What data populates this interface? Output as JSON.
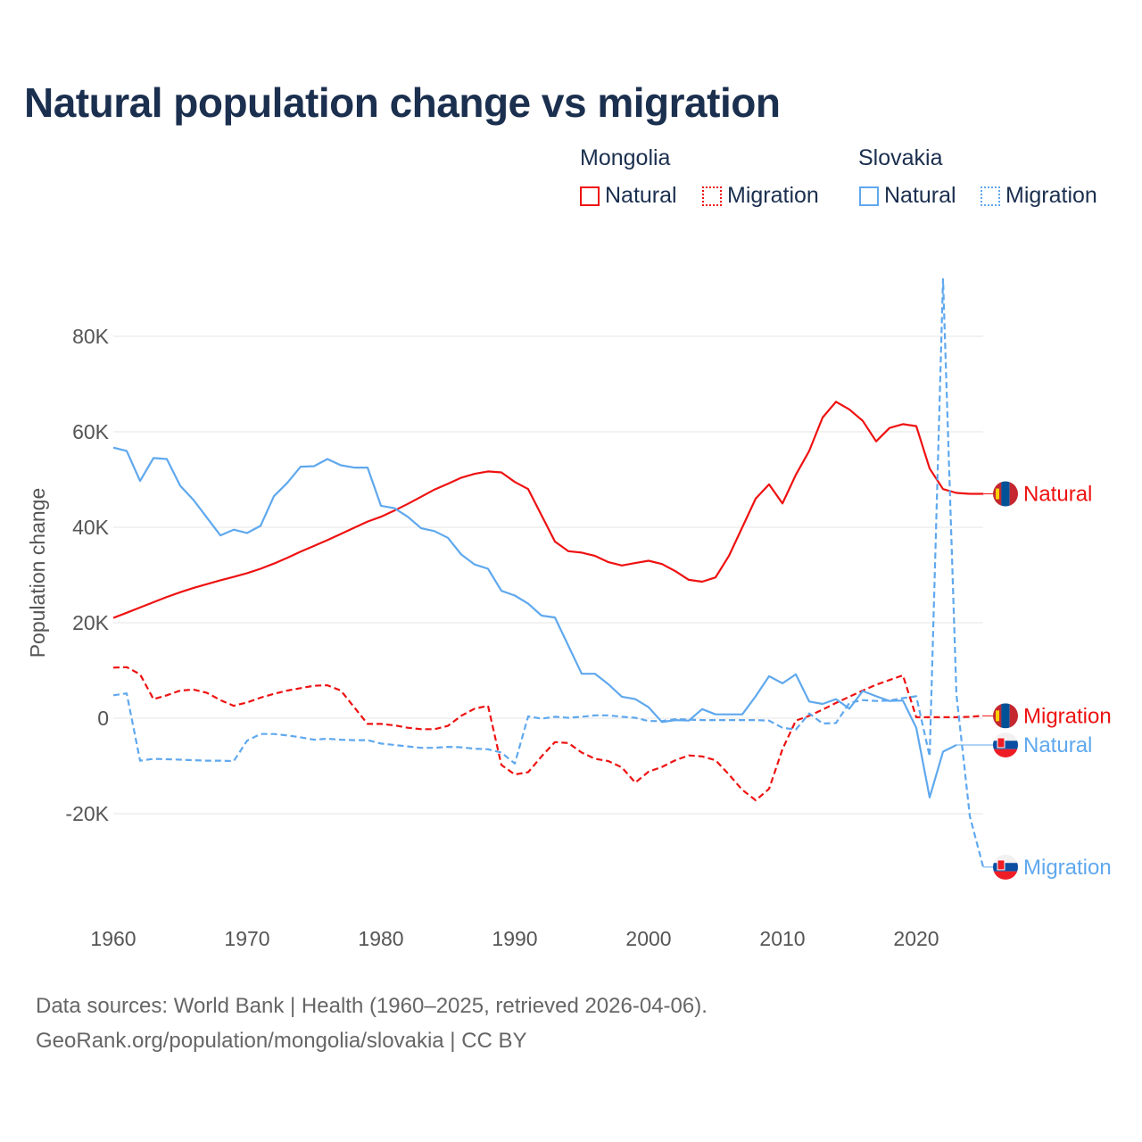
{
  "title": "Natural population change vs migration",
  "legend": {
    "groups": [
      {
        "name": "Mongolia",
        "items": [
          {
            "label": "Natural",
            "style": "solid"
          },
          {
            "label": "Migration",
            "style": "dotted"
          }
        ],
        "color": "#ee1111"
      },
      {
        "name": "Slovakia",
        "items": [
          {
            "label": "Natural",
            "style": "solid"
          },
          {
            "label": "Migration",
            "style": "dotted"
          }
        ],
        "color": "#5fa8ee"
      }
    ]
  },
  "footer": {
    "line1": "Data sources: World Bank | Health (1960–2025, retrieved 2026-04-06).",
    "line2": "GeoRank.org/population/mongolia/slovakia | CC BY"
  },
  "chart_data": {
    "type": "line",
    "title": "Natural population change vs migration",
    "xlabel": "",
    "ylabel": "Population change",
    "xlim": [
      1960,
      2025
    ],
    "ylim": [
      -38000,
      94000
    ],
    "x_ticks": [
      1960,
      1970,
      1980,
      1990,
      2000,
      2010,
      2020
    ],
    "x_tick_labels": [
      "1960",
      "1970",
      "1980",
      "1990",
      "2000",
      "2010",
      "2020"
    ],
    "y_ticks": [
      -20000,
      0,
      20000,
      40000,
      60000,
      80000
    ],
    "y_tick_labels": [
      "-20K",
      "0",
      "20K",
      "40K",
      "60K",
      "80K"
    ],
    "grid": true,
    "legend_position": "top-right",
    "start_year": 1960,
    "series": [
      {
        "name": "Mongolia Natural",
        "end_label": "Natural",
        "country": "Mongolia",
        "color": "#ee1111",
        "dash": false,
        "values": [
          21000,
          22100,
          23200,
          24300,
          25400,
          26400,
          27300,
          28100,
          28900,
          29600,
          30400,
          31300,
          32400,
          33600,
          34900,
          36100,
          37300,
          38600,
          39900,
          41200,
          42200,
          43500,
          44900,
          46400,
          47900,
          49100,
          50400,
          51200,
          51700,
          51500,
          49500,
          48000,
          42500,
          37000,
          35000,
          34700,
          34000,
          32700,
          32000,
          32500,
          33000,
          32300,
          30800,
          29000,
          28600,
          29500,
          34000,
          40000,
          46000,
          49000,
          45000,
          51000,
          56000,
          63000,
          66300,
          64700,
          62300,
          58000,
          60800,
          61600,
          61200,
          52300,
          48000,
          47200,
          47000,
          47000
        ]
      },
      {
        "name": "Mongolia Migration",
        "end_label": "Migration",
        "country": "Mongolia",
        "color": "#ee1111",
        "dash": true,
        "values": [
          10600,
          10700,
          9200,
          4000,
          4800,
          5800,
          6000,
          5300,
          3800,
          2600,
          3300,
          4300,
          5100,
          5800,
          6300,
          6800,
          6900,
          5800,
          2300,
          -1200,
          -1200,
          -1500,
          -2000,
          -2300,
          -2300,
          -1600,
          500,
          2000,
          2600,
          -9800,
          -11800,
          -11300,
          -8000,
          -5000,
          -5200,
          -7200,
          -8500,
          -9000,
          -10300,
          -13500,
          -11200,
          -10200,
          -8800,
          -7800,
          -8000,
          -8800,
          -11800,
          -15000,
          -17200,
          -14800,
          -6500,
          -500,
          500,
          1800,
          3200,
          4500,
          5800,
          7000,
          8000,
          9000,
          200,
          200,
          200,
          200,
          300,
          500
        ]
      },
      {
        "name": "Slovakia Natural",
        "end_label": "Natural",
        "country": "Slovakia",
        "color": "#5fa8ee",
        "dash": false,
        "values": [
          56700,
          56000,
          49700,
          54500,
          54300,
          48700,
          45700,
          42000,
          38300,
          39500,
          38800,
          40300,
          46500,
          49300,
          52700,
          52800,
          54300,
          53000,
          52500,
          52500,
          44500,
          44000,
          42200,
          39800,
          39200,
          37800,
          34300,
          32200,
          31300,
          26700,
          25700,
          24000,
          21500,
          21100,
          15200,
          9300,
          9300,
          7100,
          4500,
          4000,
          2300,
          -800,
          -400,
          -500,
          1900,
          800,
          800,
          800,
          4600,
          8800,
          7300,
          9200,
          3500,
          3000,
          4000,
          2000,
          5700,
          4600,
          3600,
          3700,
          -2000,
          -16600,
          -7000,
          -5600
        ]
      },
      {
        "name": "Slovakia Migration",
        "end_label": "Migration",
        "country": "Slovakia",
        "color": "#5fa8ee",
        "dash": true,
        "values": [
          4800,
          5200,
          -8900,
          -8500,
          -8600,
          -8700,
          -8800,
          -8900,
          -8900,
          -9000,
          -4700,
          -3300,
          -3300,
          -3600,
          -4000,
          -4500,
          -4300,
          -4500,
          -4600,
          -4600,
          -5300,
          -5600,
          -5900,
          -6200,
          -6200,
          -6000,
          -6100,
          -6400,
          -6500,
          -7200,
          -9500,
          400,
          -100,
          300,
          100,
          300,
          600,
          600,
          300,
          100,
          -600,
          -600,
          -200,
          -300,
          -400,
          -400,
          -400,
          -400,
          -400,
          -500,
          -2000,
          -2400,
          1000,
          -1100,
          -1000,
          3200,
          3800,
          3600,
          3700,
          4200,
          4600,
          -8000,
          92000,
          5000,
          -20500,
          -31200
        ]
      }
    ]
  }
}
